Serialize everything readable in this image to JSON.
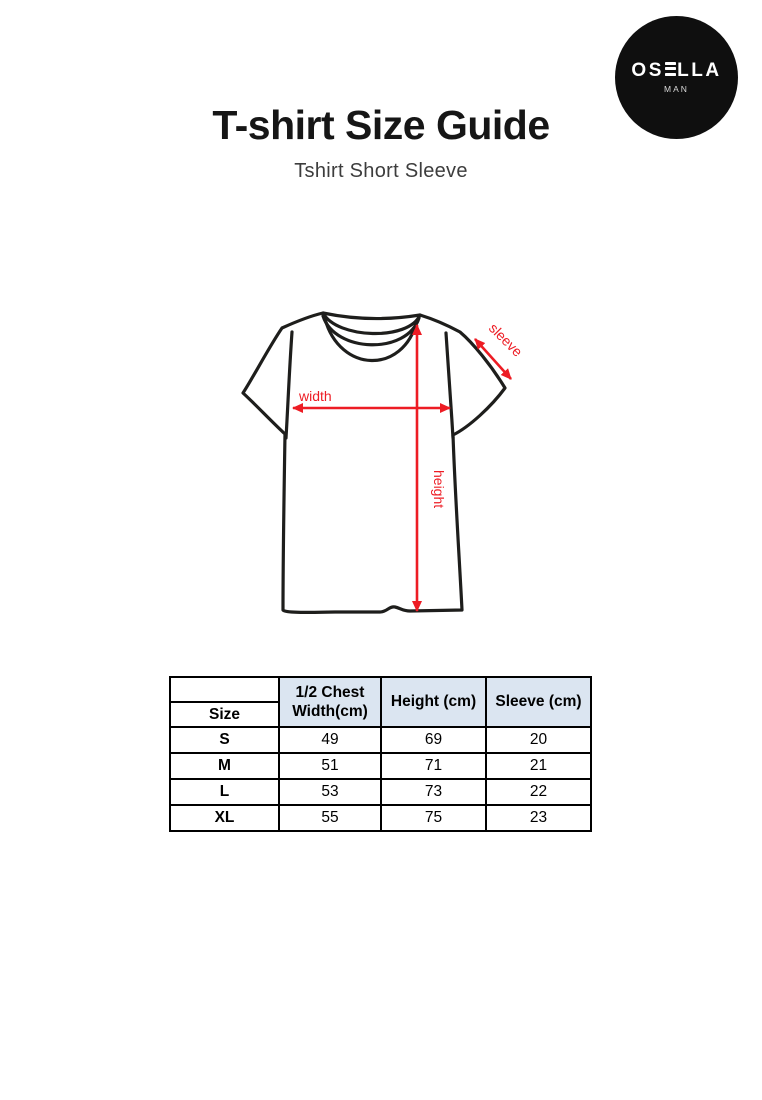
{
  "logo": {
    "brand": "OSELLA",
    "sub": "MAN",
    "bg_color": "#0f0f0f",
    "text_color": "#ffffff"
  },
  "header": {
    "title": "T-shirt Size Guide",
    "subtitle": "Tshirt Short Sleeve"
  },
  "diagram": {
    "labels": {
      "width": "width",
      "height": "height",
      "sleeve": "sleeve"
    },
    "annotation_color": "#ed1c24",
    "outline_color": "#1e1e1c"
  },
  "table": {
    "corner_label": "Size",
    "headers": [
      "1/2 Chest Width(cm)",
      "Height (cm)",
      "Sleeve (cm)"
    ],
    "header_bg": "#dbe5f1",
    "rows": [
      {
        "size": "S",
        "chest": "49",
        "height": "69",
        "sleeve": "20"
      },
      {
        "size": "M",
        "chest": "51",
        "height": "71",
        "sleeve": "21"
      },
      {
        "size": "L",
        "chest": "53",
        "height": "73",
        "sleeve": "22"
      },
      {
        "size": "XL",
        "chest": "55",
        "height": "75",
        "sleeve": "23"
      }
    ]
  }
}
